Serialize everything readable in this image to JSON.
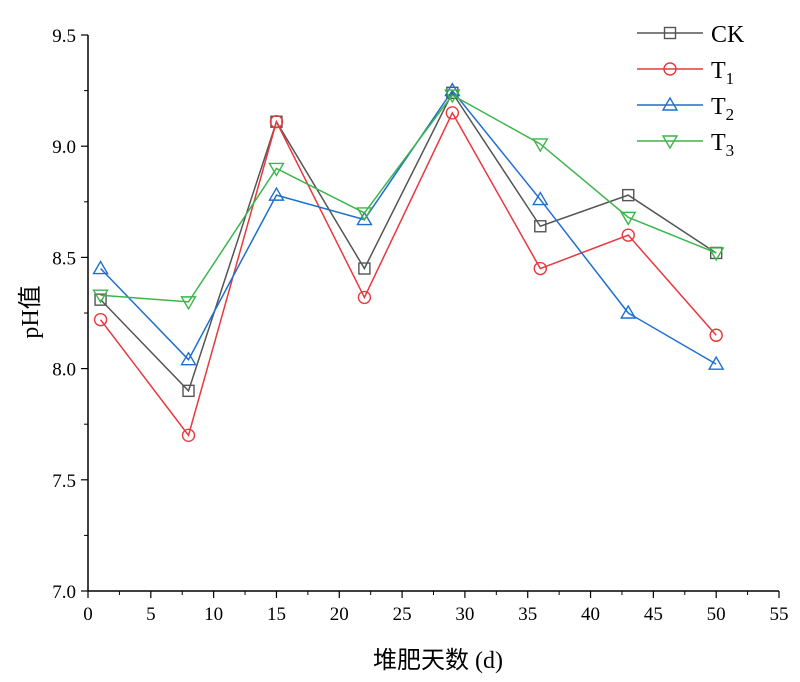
{
  "chart_data": {
    "type": "line",
    "xlabel": "堆肥天数 (d)",
    "ylabel": "pH值",
    "xlim": [
      0,
      55
    ],
    "ylim": [
      7.0,
      9.5
    ],
    "x_ticks": [
      "0",
      "5",
      "10",
      "15",
      "20",
      "25",
      "30",
      "35",
      "40",
      "45",
      "50",
      "55"
    ],
    "y_ticks": [
      "7.0",
      "7.5",
      "8.0",
      "8.5",
      "9.0",
      "9.5"
    ],
    "grid": false,
    "legend_position": "top-right",
    "x": [
      1,
      8,
      15,
      22,
      29,
      36,
      43,
      50
    ],
    "series": [
      {
        "name": "CK",
        "label_main": "CK",
        "label_sub": "",
        "marker": "square",
        "color": "#555555",
        "values": [
          8.31,
          7.9,
          9.11,
          8.45,
          9.24,
          8.64,
          8.78,
          8.52
        ]
      },
      {
        "name": "T1",
        "label_main": "T",
        "label_sub": "1",
        "marker": "circle",
        "color": "#e8383d",
        "values": [
          8.22,
          7.7,
          9.11,
          8.32,
          9.15,
          8.45,
          8.6,
          8.15
        ]
      },
      {
        "name": "T2",
        "label_main": "T",
        "label_sub": "2",
        "marker": "triangle-up",
        "color": "#1f6fcf",
        "values": [
          8.45,
          8.04,
          8.78,
          8.67,
          9.25,
          8.76,
          8.25,
          8.02
        ]
      },
      {
        "name": "T3",
        "label_main": "T",
        "label_sub": "3",
        "marker": "triangle-down",
        "color": "#3cb54a",
        "values": [
          8.33,
          8.3,
          8.9,
          8.7,
          9.23,
          9.01,
          8.68,
          8.52
        ]
      }
    ]
  }
}
